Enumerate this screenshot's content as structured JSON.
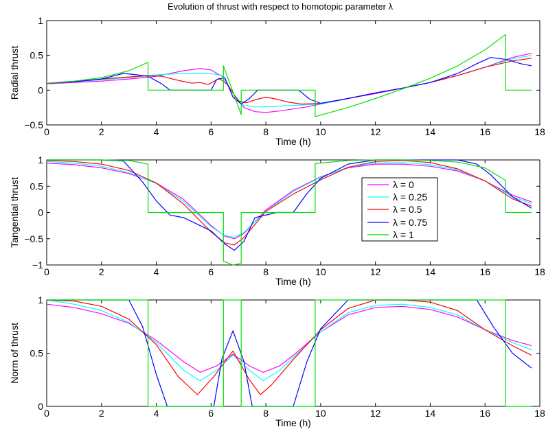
{
  "figure": {
    "title": "Evolution of thrust with respect to homotopic parameter λ"
  },
  "legend": {
    "entries": [
      "λ = 0",
      "λ = 0.25",
      "λ = 0.5",
      "λ = 0.75",
      "λ = 1"
    ]
  },
  "chart_data": [
    {
      "type": "line",
      "title": "Evolution of thrust with respect to homotopic parameter λ",
      "xlabel": "Time (h)",
      "ylabel": "Radial thrust",
      "xlim": [
        0,
        18
      ],
      "ylim": [
        -0.5,
        1
      ],
      "xticks": [
        0,
        2,
        4,
        6,
        8,
        10,
        12,
        14,
        16,
        18
      ],
      "yticks": [
        -0.5,
        0,
        0.5,
        1
      ],
      "ytick_labels": [
        "−0.5",
        "0",
        "0.5",
        "1"
      ],
      "grid": false,
      "series": [
        {
          "name": "λ = 0",
          "color": "#ff00ff",
          "x": [
            0,
            1,
            2,
            3,
            4,
            5,
            5.6,
            6,
            6.4,
            6.8,
            7.2,
            7.6,
            8,
            8.5,
            9,
            9.5,
            10,
            11,
            12,
            13,
            14,
            15,
            16,
            17,
            17.7
          ],
          "y": [
            0.09,
            0.11,
            0.13,
            0.16,
            0.2,
            0.28,
            0.31,
            0.29,
            0.2,
            -0.05,
            -0.25,
            -0.31,
            -0.32,
            -0.3,
            -0.27,
            -0.24,
            -0.2,
            -0.12,
            -0.05,
            0.03,
            0.11,
            0.21,
            0.33,
            0.47,
            0.53
          ]
        },
        {
          "name": "λ = 0.25",
          "color": "#00ffff",
          "x": [
            0,
            1,
            2,
            3,
            4,
            5,
            6,
            6.4,
            6.8,
            7.2,
            7.6,
            8,
            8.5,
            9,
            9.5,
            10,
            11,
            12,
            13,
            14,
            15,
            16,
            17,
            17.7
          ],
          "y": [
            0.1,
            0.12,
            0.15,
            0.18,
            0.22,
            0.24,
            0.24,
            0.21,
            -0.05,
            -0.22,
            -0.24,
            -0.24,
            -0.23,
            -0.22,
            -0.21,
            -0.2,
            -0.12,
            -0.04,
            0.03,
            0.11,
            0.21,
            0.33,
            0.45,
            0.5
          ]
        },
        {
          "name": "λ = 0.5",
          "color": "#ff0000",
          "x": [
            0,
            1,
            2,
            3,
            3.7,
            4.2,
            4.8,
            5.3,
            5.6,
            5.9,
            6.3,
            6.6,
            7,
            7.3,
            7.6,
            8,
            8.4,
            8.8,
            9.3,
            10,
            11,
            12,
            13,
            14,
            15,
            16,
            17,
            17.7
          ],
          "y": [
            0.1,
            0.12,
            0.16,
            0.19,
            0.21,
            0.2,
            0.14,
            0.1,
            0.11,
            0.08,
            0.17,
            0.08,
            -0.16,
            -0.18,
            -0.14,
            -0.1,
            -0.13,
            -0.17,
            -0.2,
            -0.19,
            -0.12,
            -0.04,
            0.03,
            0.11,
            0.21,
            0.33,
            0.42,
            0.46
          ]
        },
        {
          "name": "λ = 0.75",
          "color": "#0000ff",
          "x": [
            0,
            1,
            2,
            2.8,
            3.3,
            3.7,
            4.2,
            4.5,
            6,
            6.2,
            6.5,
            6.8,
            7.1,
            7.4,
            7.7,
            8,
            8.6,
            9.2,
            9.6,
            10,
            11,
            12,
            13,
            14,
            15,
            15.7,
            16.2,
            16.8,
            17.3,
            17.7
          ],
          "y": [
            0.1,
            0.12,
            0.16,
            0.24,
            0.22,
            0.2,
            0.09,
            0,
            0,
            0.15,
            0.18,
            -0.1,
            -0.2,
            -0.12,
            0,
            0,
            0,
            0,
            -0.13,
            -0.19,
            -0.12,
            -0.04,
            0.03,
            0.11,
            0.24,
            0.38,
            0.47,
            0.44,
            0.38,
            0.35
          ]
        },
        {
          "name": "λ = 1",
          "color": "#00e000",
          "x": [
            0,
            1,
            2,
            3,
            3.7,
            3.7,
            6.45,
            6.45,
            7.1,
            7.1,
            9.8,
            9.8,
            11,
            12,
            13,
            14,
            15,
            16,
            16.75,
            16.75,
            17.7
          ],
          "y": [
            0.1,
            0.13,
            0.18,
            0.28,
            0.4,
            0,
            0,
            0.35,
            -0.35,
            0,
            0,
            -0.38,
            -0.25,
            -0.12,
            0.02,
            0.17,
            0.35,
            0.58,
            0.8,
            0,
            0
          ]
        }
      ]
    },
    {
      "type": "line",
      "xlabel": "Time (h)",
      "ylabel": "Tangential thrust",
      "xlim": [
        0,
        18
      ],
      "ylim": [
        -1,
        1
      ],
      "xticks": [
        0,
        2,
        4,
        6,
        8,
        10,
        12,
        14,
        16,
        18
      ],
      "yticks": [
        -1,
        -0.5,
        0,
        0.5,
        1
      ],
      "ytick_labels": [
        "−1",
        "−0.5",
        "0",
        "0.5",
        "1"
      ],
      "grid": false,
      "legend_position": "center-right",
      "series": [
        {
          "name": "λ = 0",
          "color": "#ff00ff",
          "x": [
            0,
            1,
            2,
            3,
            4,
            5,
            6,
            6.5,
            6.85,
            7.2,
            8,
            9,
            10,
            11,
            12,
            13,
            14,
            15,
            16,
            17,
            17.7
          ],
          "y": [
            0.94,
            0.91,
            0.85,
            0.74,
            0.56,
            0.25,
            -0.25,
            -0.45,
            -0.5,
            -0.4,
            0.05,
            0.42,
            0.68,
            0.85,
            0.92,
            0.92,
            0.88,
            0.79,
            0.6,
            0.33,
            0.2
          ]
        },
        {
          "name": "λ = 0.25",
          "color": "#00ffff",
          "x": [
            0,
            1,
            2,
            3,
            4,
            5,
            6,
            6.5,
            6.85,
            7.2,
            8,
            9,
            10,
            11,
            12,
            13,
            14,
            15,
            16,
            17,
            17.7
          ],
          "y": [
            0.97,
            0.94,
            0.88,
            0.76,
            0.55,
            0.21,
            -0.27,
            -0.44,
            -0.47,
            -0.38,
            0.02,
            0.4,
            0.67,
            0.86,
            0.94,
            0.95,
            0.91,
            0.81,
            0.6,
            0.3,
            0.17
          ]
        },
        {
          "name": "λ = 0.5",
          "color": "#ff0000",
          "x": [
            0,
            1,
            2,
            3,
            4,
            5,
            6,
            6.5,
            6.85,
            7.2,
            8,
            9,
            10,
            11,
            12,
            13,
            14,
            15,
            16,
            17,
            17.7
          ],
          "y": [
            0.99,
            0.97,
            0.92,
            0.8,
            0.56,
            0.16,
            -0.37,
            -0.58,
            -0.62,
            -0.48,
            0.02,
            0.35,
            0.62,
            0.86,
            0.97,
            0.99,
            0.95,
            0.83,
            0.6,
            0.26,
            0.12
          ]
        },
        {
          "name": "λ = 0.75",
          "color": "#0000ff",
          "x": [
            0,
            1,
            2,
            2.8,
            3.5,
            4,
            4.5,
            5,
            6,
            6.5,
            6.85,
            7.2,
            7.6,
            8.4,
            9,
            9.5,
            10,
            11,
            12,
            13,
            14,
            15,
            15.7,
            16.2,
            17,
            17.7
          ],
          "y": [
            1,
            1,
            1,
            0.98,
            0.58,
            0.22,
            -0.05,
            -0.1,
            -0.35,
            -0.6,
            -0.72,
            -0.55,
            -0.1,
            0,
            0,
            0.36,
            0.65,
            0.92,
            1,
            1,
            1,
            1,
            0.92,
            0.72,
            0.3,
            0.08
          ]
        },
        {
          "name": "λ = 1",
          "color": "#00e000",
          "x": [
            0,
            1,
            2,
            3,
            3.7,
            3.7,
            6.45,
            6.45,
            6.8,
            7.1,
            7.1,
            9.8,
            9.8,
            11,
            12,
            13,
            14,
            15,
            16,
            16.75,
            16.75,
            17.7
          ],
          "y": [
            1,
            1,
            1,
            0.99,
            0.92,
            0,
            0,
            -0.93,
            -1,
            -0.97,
            0,
            0,
            0.93,
            0.99,
            1,
            1,
            0.99,
            0.96,
            0.85,
            0.61,
            0,
            0
          ]
        }
      ]
    },
    {
      "type": "line",
      "xlabel": "Time (h)",
      "ylabel": "Norm of thrust",
      "xlim": [
        0,
        18
      ],
      "ylim": [
        0,
        1
      ],
      "xticks": [
        0,
        2,
        4,
        6,
        8,
        10,
        12,
        14,
        16,
        18
      ],
      "yticks": [
        0,
        0.5,
        1
      ],
      "ytick_labels": [
        "0",
        "0.5",
        "1"
      ],
      "grid": false,
      "series": [
        {
          "name": "λ = 0",
          "color": "#ff00ff",
          "x": [
            0,
            1,
            2,
            3,
            4,
            5,
            5.6,
            6.2,
            6.8,
            7.4,
            7.9,
            8.5,
            9,
            10,
            11,
            12,
            13,
            14,
            15,
            16,
            17,
            17.7
          ],
          "y": [
            0.96,
            0.93,
            0.87,
            0.78,
            0.62,
            0.42,
            0.32,
            0.38,
            0.49,
            0.38,
            0.32,
            0.38,
            0.48,
            0.7,
            0.86,
            0.93,
            0.94,
            0.91,
            0.84,
            0.72,
            0.62,
            0.57
          ]
        },
        {
          "name": "λ = 0.25",
          "color": "#00ffff",
          "x": [
            0,
            1,
            2,
            3,
            4,
            5,
            5.6,
            6.2,
            6.8,
            7.4,
            7.9,
            8.5,
            9,
            10,
            11,
            12,
            13,
            14,
            15,
            16,
            17,
            17.7
          ],
          "y": [
            1,
            0.96,
            0.9,
            0.79,
            0.6,
            0.34,
            0.24,
            0.34,
            0.48,
            0.34,
            0.24,
            0.34,
            0.46,
            0.7,
            0.88,
            0.95,
            0.96,
            0.93,
            0.86,
            0.72,
            0.6,
            0.53
          ]
        },
        {
          "name": "λ = 0.5",
          "color": "#ff0000",
          "x": [
            0,
            1,
            2,
            3,
            4,
            4.8,
            5.5,
            6.1,
            6.8,
            7.4,
            7.8,
            8.2,
            9,
            10,
            11,
            12,
            13,
            14,
            15,
            16,
            17,
            17.7
          ],
          "y": [
            1,
            0.99,
            0.94,
            0.82,
            0.58,
            0.28,
            0.11,
            0.28,
            0.52,
            0.25,
            0.11,
            0.2,
            0.44,
            0.72,
            0.92,
            1,
            1,
            0.98,
            0.9,
            0.72,
            0.57,
            0.48
          ]
        },
        {
          "name": "λ = 0.75",
          "color": "#0000ff",
          "x": [
            0,
            1,
            2,
            3,
            3.5,
            4,
            4.4,
            6.1,
            6.4,
            6.8,
            7.2,
            7.5,
            8.3,
            9,
            9.5,
            10,
            11,
            12,
            13,
            14,
            15,
            15.7,
            16.3,
            17,
            17.7
          ],
          "y": [
            1,
            1,
            1,
            1,
            0.75,
            0.3,
            0,
            0,
            0.45,
            0.71,
            0.42,
            0,
            0,
            0,
            0.42,
            0.73,
            1,
            1,
            1,
            1,
            1,
            1,
            0.75,
            0.5,
            0.36
          ]
        },
        {
          "name": "λ = 1",
          "color": "#00e000",
          "x": [
            0,
            3.7,
            3.7,
            6.45,
            6.45,
            7.1,
            7.1,
            9.8,
            9.8,
            16.75,
            16.75,
            17.7
          ],
          "y": [
            1,
            1,
            0,
            0,
            1,
            1,
            0,
            0,
            1,
            1,
            0,
            0
          ]
        }
      ]
    }
  ]
}
